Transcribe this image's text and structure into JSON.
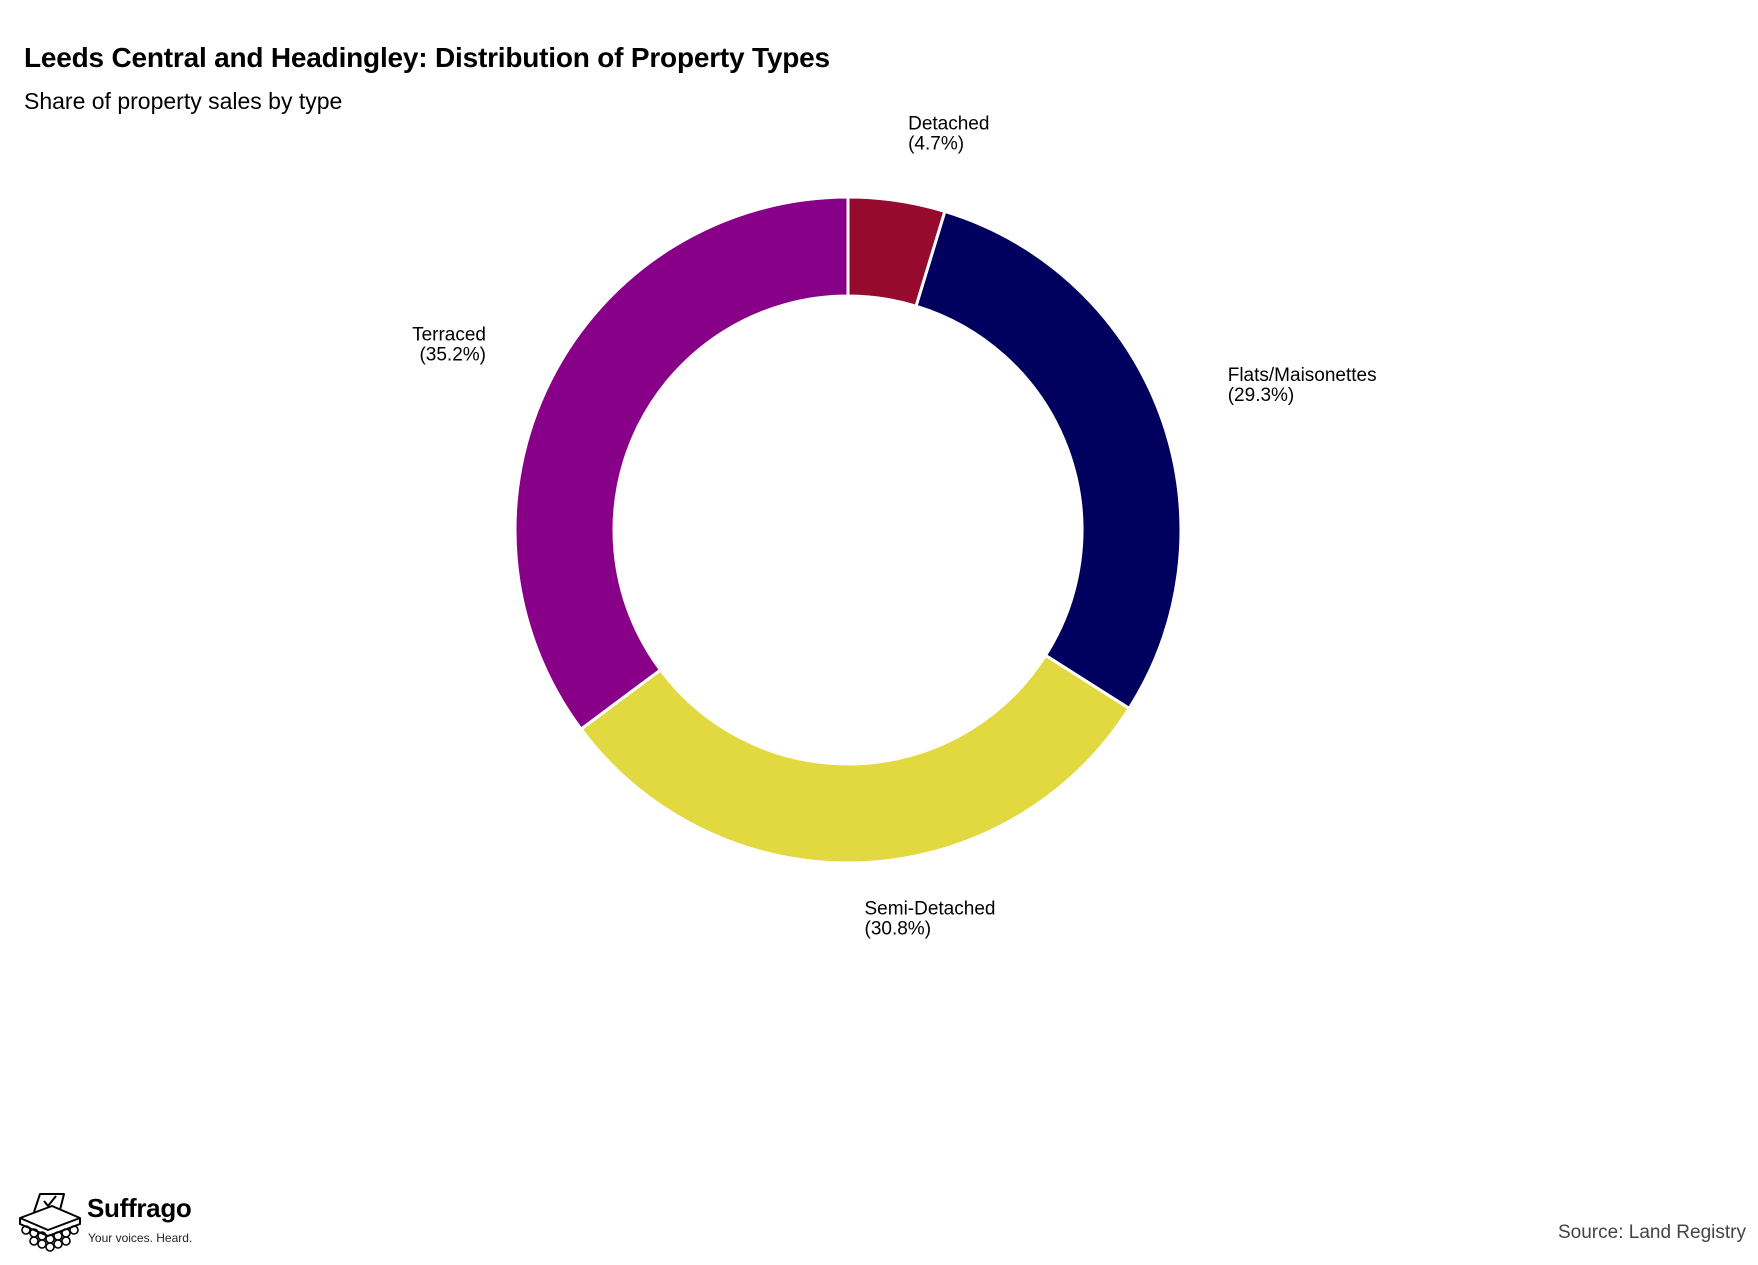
{
  "header": {
    "title": "Leeds Central and Headingley: Distribution of Property Types",
    "subtitle": "Share of property sales by type"
  },
  "footer": {
    "brand_name": "Suffrago",
    "brand_tagline": "Your voices. Heard.",
    "source": "Source: Land Registry"
  },
  "chart_data": {
    "type": "pie",
    "style": "donut",
    "title": "Leeds Central and Headingley: Distribution of Property Types",
    "subtitle": "Share of property sales by type",
    "start_angle": "12 o'clock",
    "direction": "clockwise",
    "legend": "none",
    "labels": [
      "Detached",
      "Flats/Maisonettes",
      "Semi-Detached",
      "Terraced"
    ],
    "values": [
      4.7,
      29.3,
      30.8,
      35.2
    ],
    "value_labels": [
      "(4.7%)",
      "(29.3%)",
      "(30.8%)",
      "(35.2%)"
    ],
    "colors": [
      "#960a2e",
      "#00005f",
      "#e2d840",
      "#880088"
    ],
    "unit": "%"
  }
}
